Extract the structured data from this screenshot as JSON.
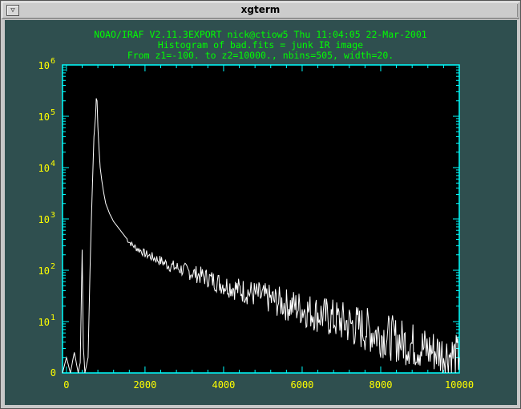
{
  "window": {
    "title": "xgterm",
    "menu_icon": "down-triangle-icon"
  },
  "header": {
    "line1": "NOAO/IRAF V2.11.3EXPORT nick@ctiow5 Thu 11:04:05 22-Mar-2001",
    "line2": "Histogram of bad.fits = junk IR image",
    "line3": "From z1=-100. to z2=10000., nbins=505, width=20."
  },
  "colors": {
    "frame": "#2f4f4f",
    "axes": "#00ffff",
    "labels": "#ffff00",
    "header": "#00ff00",
    "plot_bg": "#000000",
    "trace": "#ffffff"
  },
  "chart_data": {
    "type": "line",
    "title": "Histogram of bad.fits = junk IR image",
    "xlabel": "",
    "ylabel": "",
    "x_ticks": [
      "0",
      "2000",
      "4000",
      "6000",
      "8000",
      "10000"
    ],
    "y_ticks": [
      "0",
      "10^1",
      "10^2",
      "10^3",
      "10^4",
      "10^5",
      "10^6"
    ],
    "y_tick_labels": [
      {
        "base": "0",
        "exp": ""
      },
      {
        "base": "10",
        "exp": "1"
      },
      {
        "base": "10",
        "exp": "2"
      },
      {
        "base": "10",
        "exp": "3"
      },
      {
        "base": "10",
        "exp": "4"
      },
      {
        "base": "10",
        "exp": "5"
      },
      {
        "base": "10",
        "exp": "6"
      }
    ],
    "xlim": [
      -100,
      10000
    ],
    "ylim_log": [
      0,
      6
    ],
    "y_scale": "log",
    "series": [
      {
        "values": [
          [
            -100,
            0.0
          ],
          [
            0,
            0.3
          ],
          [
            100,
            0.0
          ],
          [
            200,
            0.4
          ],
          [
            300,
            0.0
          ],
          [
            350,
            0.2
          ],
          [
            400,
            2.4
          ],
          [
            430,
            0.5
          ],
          [
            470,
            0.0
          ],
          [
            550,
            0.3
          ],
          [
            600,
            2.0
          ],
          [
            650,
            3.4
          ],
          [
            700,
            4.6
          ],
          [
            740,
            5.0
          ],
          [
            760,
            5.35
          ],
          [
            780,
            5.3
          ],
          [
            800,
            4.8
          ],
          [
            830,
            4.35
          ],
          [
            860,
            4.0
          ],
          [
            900,
            3.75
          ],
          [
            950,
            3.5
          ],
          [
            1000,
            3.3
          ],
          [
            1100,
            3.1
          ],
          [
            1200,
            2.95
          ],
          [
            1300,
            2.85
          ],
          [
            1400,
            2.75
          ],
          [
            1500,
            2.65
          ],
          [
            1600,
            2.55
          ],
          [
            1700,
            2.48
          ],
          [
            1800,
            2.42
          ],
          [
            1900,
            2.38
          ],
          [
            2000,
            2.32
          ],
          [
            2200,
            2.25
          ],
          [
            2400,
            2.18
          ],
          [
            2600,
            2.1
          ],
          [
            2800,
            2.05
          ],
          [
            3000,
            2.0
          ],
          [
            3200,
            1.95
          ],
          [
            3400,
            1.9
          ],
          [
            3600,
            1.85
          ],
          [
            3800,
            1.78
          ],
          [
            4000,
            1.72
          ],
          [
            4200,
            1.68
          ],
          [
            4400,
            1.62
          ],
          [
            4600,
            1.58
          ],
          [
            4800,
            1.53
          ],
          [
            5000,
            1.48
          ],
          [
            5200,
            1.43
          ],
          [
            5400,
            1.38
          ],
          [
            5600,
            1.33
          ],
          [
            5800,
            1.3
          ],
          [
            6000,
            1.25
          ],
          [
            6200,
            1.2
          ],
          [
            6400,
            1.15
          ],
          [
            6600,
            1.1
          ],
          [
            6800,
            1.05
          ],
          [
            7000,
            1.0
          ],
          [
            7200,
            0.95
          ],
          [
            7400,
            0.9
          ],
          [
            7600,
            0.85
          ],
          [
            7800,
            0.8
          ],
          [
            8000,
            0.75
          ],
          [
            8200,
            0.7
          ],
          [
            8400,
            0.65
          ],
          [
            8600,
            0.6
          ],
          [
            8800,
            0.55
          ],
          [
            9000,
            0.5
          ],
          [
            9200,
            0.45
          ],
          [
            9400,
            0.42
          ],
          [
            9600,
            0.38
          ],
          [
            9800,
            0.35
          ],
          [
            10000,
            0.3
          ]
        ]
      }
    ],
    "grid": false
  }
}
